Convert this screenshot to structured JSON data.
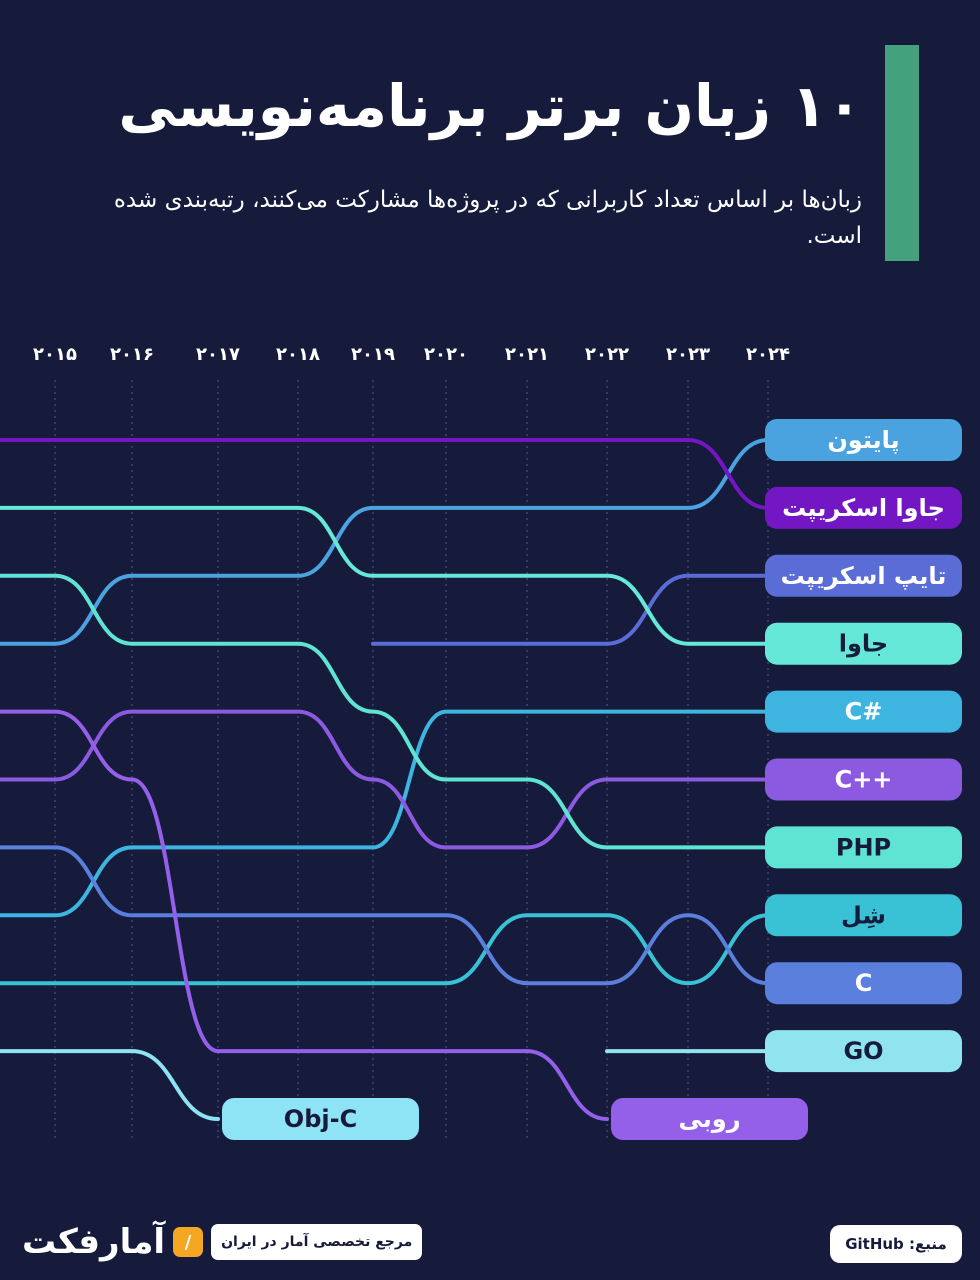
{
  "header": {
    "title": "۱۰ زبان برتر برنامه‌نویسی",
    "subtitle": "زبان‌ها بر اساس تعداد کاربرانی که در پروژه‌ها مشارکت می‌کنند، رتبه‌بندی شده است."
  },
  "colors": {
    "background": "#161a3b",
    "accent": "#45a07e",
    "python": "#4aa3df",
    "javascript": "#7316c4",
    "typescript": "#5a6cd6",
    "java": "#66e8d8",
    "csharp": "#3db5e0",
    "cpp": "#8c5ae0",
    "php": "#5fe3d3",
    "shell": "#39c2d6",
    "c": "#5a7fdc",
    "go": "#8fe4f0",
    "objc": "#8ee3f5",
    "ruby": "#9460ea"
  },
  "chart_data": {
    "type": "bump",
    "title": "۱۰ زبان برتر برنامه‌نویسی",
    "x": [
      "۲۰۱۵",
      "۲۰۱۶",
      "۲۰۱۷",
      "۲۰۱۸",
      "۲۰۱۹",
      "۲۰۲۰",
      "۲۰۲۱",
      "۲۰۲۲",
      "۲۰۲۳",
      "۲۰۲۴"
    ],
    "rank_axis": "1 = top",
    "series": [
      {
        "name": "پایتون",
        "key": "python",
        "ranks": [
          4,
          3,
          3,
          3,
          2,
          2,
          2,
          2,
          2,
          1
        ]
      },
      {
        "name": "جاوا اسکریپت",
        "key": "javascript",
        "ranks": [
          1,
          1,
          1,
          1,
          1,
          1,
          1,
          1,
          1,
          2
        ]
      },
      {
        "name": "تایپ اسکریپت",
        "key": "typescript",
        "ranks": [
          null,
          null,
          null,
          null,
          4,
          4,
          4,
          4,
          3,
          3
        ]
      },
      {
        "name": "جاوا",
        "key": "java",
        "ranks": [
          2,
          2,
          2,
          2,
          3,
          3,
          3,
          3,
          4,
          4
        ]
      },
      {
        "name": "C#",
        "key": "csharp",
        "ranks": [
          8,
          7,
          7,
          7,
          7,
          5,
          5,
          5,
          5,
          5
        ]
      },
      {
        "name": "C++",
        "key": "cpp",
        "ranks": [
          6,
          5,
          5,
          5,
          6,
          7,
          7,
          6,
          6,
          6
        ]
      },
      {
        "name": "PHP",
        "key": "php",
        "ranks": [
          3,
          4,
          4,
          4,
          5,
          6,
          6,
          7,
          7,
          7
        ]
      },
      {
        "name": "شِل",
        "key": "shell",
        "ranks": [
          9,
          9,
          9,
          9,
          9,
          9,
          8,
          8,
          9,
          8
        ]
      },
      {
        "name": "C",
        "key": "c",
        "ranks": [
          7,
          8,
          8,
          8,
          8,
          8,
          9,
          9,
          8,
          9
        ]
      },
      {
        "name": "GO",
        "key": "go",
        "ranks": [
          null,
          null,
          null,
          null,
          null,
          null,
          null,
          10,
          10,
          10
        ]
      },
      {
        "name": "Obj-C",
        "key": "objc",
        "ranks": [
          10,
          10,
          11,
          null,
          null,
          null,
          null,
          null,
          null,
          null
        ]
      },
      {
        "name": "روبی",
        "key": "ruby",
        "ranks": [
          5,
          6,
          10,
          10,
          10,
          10,
          10,
          11,
          null,
          null
        ]
      }
    ]
  },
  "footer": {
    "source": "منبع: GitHub",
    "brand_name": "آمارفکت",
    "brand_tagline": "مرجع تخصصی آمار در ایران"
  }
}
